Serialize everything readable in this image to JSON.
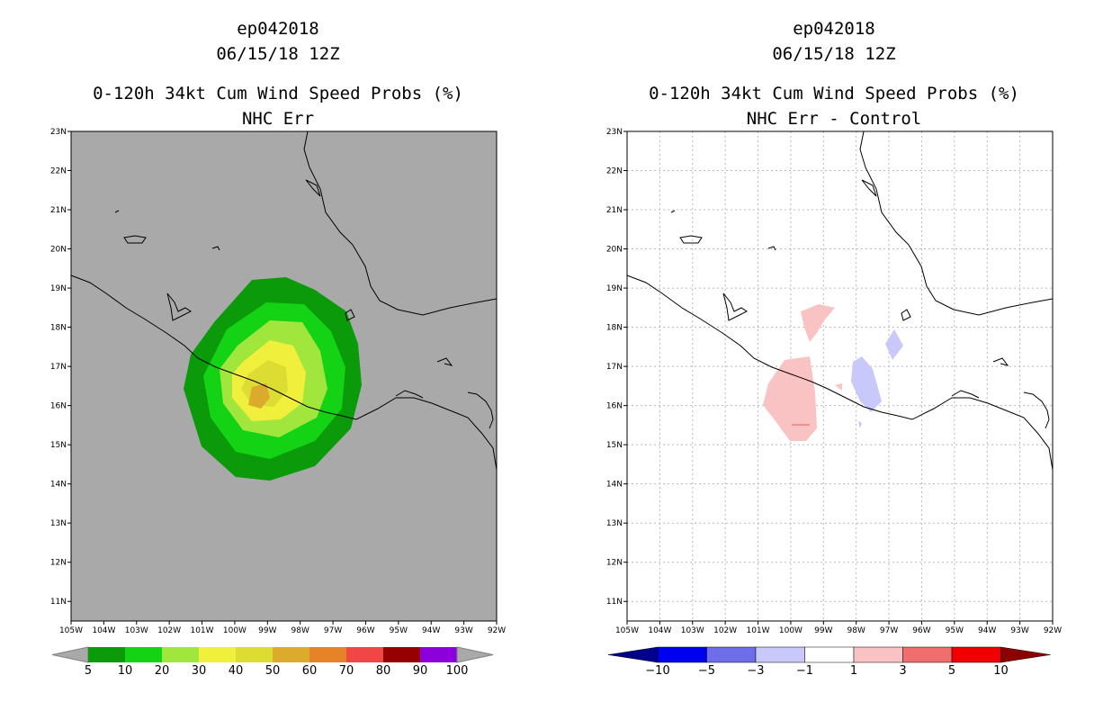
{
  "left_panel": {
    "storm_id": "ep042018",
    "datetime": "06/15/18 12Z",
    "product": "0-120h 34kt Cum Wind Speed Probs (%)",
    "subtitle": "NHC Err",
    "background_color": "#a9a9a9",
    "colorbar": {
      "colors": [
        "#0a9a0a",
        "#14d214",
        "#a0e63c",
        "#f0f03c",
        "#dcdc32",
        "#dcaa2d",
        "#e68228",
        "#f04646",
        "#960000",
        "#8c00dc"
      ],
      "labels": [
        "5",
        "10",
        "20",
        "30",
        "40",
        "50",
        "60",
        "70",
        "80",
        "90",
        "100"
      ]
    }
  },
  "right_panel": {
    "storm_id": "ep042018",
    "datetime": "06/15/18 12Z",
    "product": "0-120h 34kt Cum Wind Speed Probs (%)",
    "subtitle": "NHC Err - Control",
    "background_color": "#ffffff",
    "colorbar": {
      "colors": [
        "#00008c",
        "#0000f0",
        "#6e6eeb",
        "#c8c8fa",
        "#ffffff",
        "#fac3c3",
        "#f06e6e",
        "#f00000",
        "#8c0000"
      ],
      "labels": [
        "-10",
        "-5",
        "-3",
        "-1",
        "1",
        "3",
        "5",
        "10"
      ]
    }
  },
  "axes": {
    "lat_labels": [
      "23N",
      "22N",
      "21N",
      "20N",
      "19N",
      "18N",
      "17N",
      "16N",
      "15N",
      "14N",
      "13N",
      "12N",
      "11N"
    ],
    "lon_labels": [
      "105W",
      "104W",
      "103W",
      "102W",
      "101W",
      "100W",
      "99W",
      "98W",
      "97W",
      "96W",
      "95W",
      "94W",
      "93W",
      "92W"
    ]
  }
}
